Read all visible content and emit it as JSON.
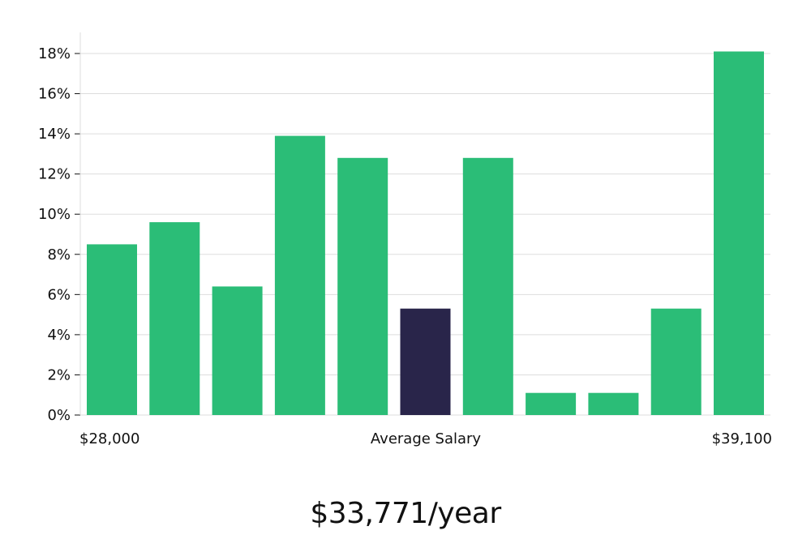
{
  "chart_data": {
    "type": "bar",
    "categories": [
      "1",
      "2",
      "3",
      "4",
      "5",
      "6",
      "7",
      "8",
      "9",
      "10",
      "11"
    ],
    "values": [
      8.5,
      9.6,
      6.4,
      13.9,
      12.8,
      5.3,
      12.8,
      1.1,
      1.1,
      5.3,
      18.1
    ],
    "highlight_index": 5,
    "ylim": [
      0,
      19
    ],
    "yticks": [
      0,
      2,
      4,
      6,
      8,
      10,
      12,
      14,
      16,
      18
    ],
    "ytick_suffix": "%",
    "grid": true,
    "x_left_label": "$28,000",
    "x_center_label": "Average Salary",
    "x_right_label": "$39,100",
    "colors": {
      "bar": "#2bbd77",
      "highlight": "#29254a",
      "grid": "#dddddd"
    }
  },
  "salary": {
    "value_text": "$33,771/year"
  }
}
